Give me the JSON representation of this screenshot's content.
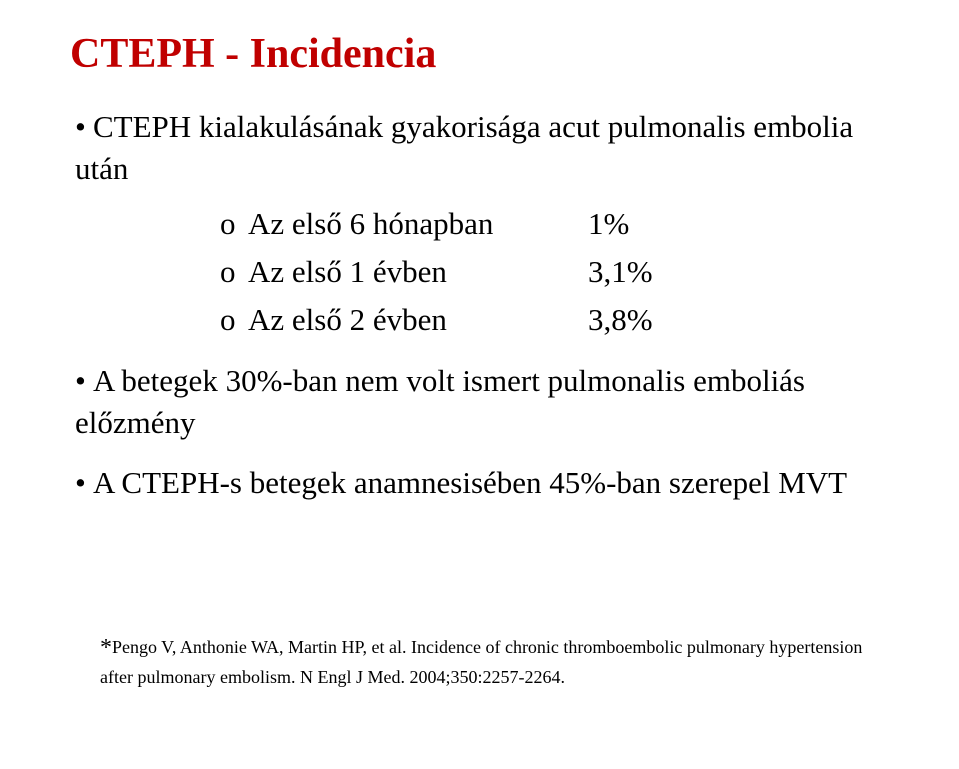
{
  "title": "CTEPH - Incidencia",
  "bullets": {
    "b1_prefix": "• ",
    "b1": "CTEPH kialakulásának gyakorisága acut pulmonalis embolia után",
    "sub_marker": "o",
    "sub": [
      {
        "label": "Az első 6 hónapban",
        "value": "1%"
      },
      {
        "label": "Az első 1 évben",
        "value": "3,1%"
      },
      {
        "label": "Az első 2 évben",
        "value": "3,8%"
      }
    ],
    "b2_prefix": "• ",
    "b2": "A betegek 30%-ban nem volt ismert pulmonalis emboliás előzmény",
    "b3_prefix": "• ",
    "b3": "A CTEPH-s betegek anamnesisében 45%-ban szerepel MVT"
  },
  "footnote": {
    "star": "*",
    "text": "Pengo V, Anthonie WA, Martin HP, et al. Incidence of chronic thromboembolic pulmonary hypertension after pulmonary embolism. N Engl J Med. 2004;350:2257-2264."
  },
  "colors": {
    "title": "#c00000",
    "body_text": "#000000",
    "background": "#ffffff"
  },
  "fontsizes": {
    "title_pt": 42,
    "body_pt": 31,
    "footnote_pt": 18
  }
}
